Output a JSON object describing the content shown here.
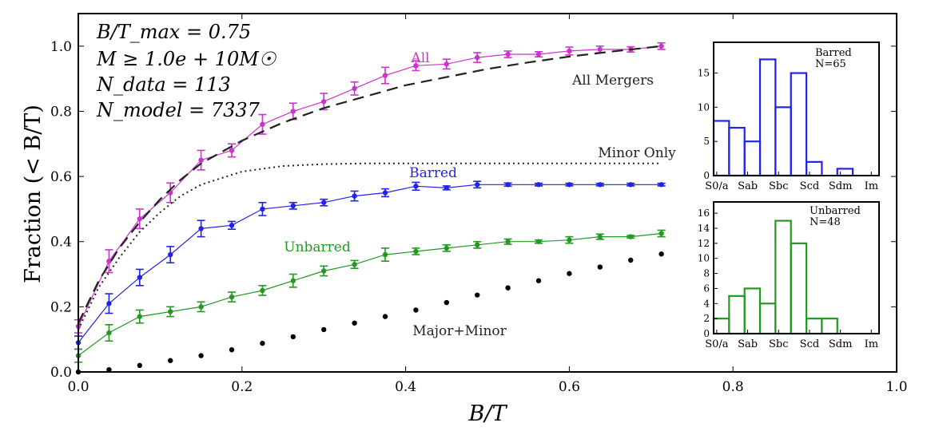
{
  "chart_data": [
    {
      "type": "line",
      "xlabel": "B/T",
      "ylabel": "Fraction (< B/T)",
      "xlim": [
        0.0,
        1.0
      ],
      "ylim": [
        0.0,
        1.1
      ],
      "xticks": [
        "0.0",
        "0.2",
        "0.4",
        "0.6",
        "0.8",
        "1.0"
      ],
      "yticks": [
        "0.0",
        "0.2",
        "0.4",
        "0.6",
        "0.8",
        "1.0"
      ],
      "legend_position": "top-left text block",
      "info_lines": [
        "B/T_max = 0.75",
        "M ≥ 1.0e + 10M☉",
        "N_data = 113",
        "N_model = 7337"
      ],
      "series": [
        {
          "name": "All",
          "color": "#cc33cc",
          "style": "line-points-errorbars",
          "x": [
            0.0,
            0.0375,
            0.075,
            0.1125,
            0.15,
            0.1875,
            0.225,
            0.2625,
            0.3,
            0.3375,
            0.375,
            0.4125,
            0.45,
            0.4875,
            0.525,
            0.5625,
            0.6,
            0.6375,
            0.675,
            0.7125
          ],
          "values": [
            0.14,
            0.34,
            0.47,
            0.55,
            0.65,
            0.68,
            0.76,
            0.8,
            0.83,
            0.87,
            0.91,
            0.94,
            0.945,
            0.965,
            0.975,
            0.975,
            0.985,
            0.99,
            0.99,
            1.0
          ],
          "errors": [
            0.02,
            0.035,
            0.03,
            0.03,
            0.03,
            0.02,
            0.03,
            0.025,
            0.025,
            0.02,
            0.025,
            0.015,
            0.015,
            0.015,
            0.01,
            0.008,
            0.012,
            0.01,
            0.008,
            0.01
          ]
        },
        {
          "name": "All Mergers",
          "color": "#222222",
          "style": "dashed",
          "x": [
            0.0,
            0.025,
            0.05,
            0.075,
            0.1,
            0.125,
            0.15,
            0.2,
            0.25,
            0.3,
            0.35,
            0.4,
            0.45,
            0.5,
            0.55,
            0.6,
            0.65,
            0.7125
          ],
          "values": [
            0.15,
            0.28,
            0.38,
            0.46,
            0.53,
            0.59,
            0.64,
            0.71,
            0.765,
            0.81,
            0.845,
            0.88,
            0.905,
            0.93,
            0.95,
            0.968,
            0.983,
            1.0
          ]
        },
        {
          "name": "Minor Only",
          "color": "#222222",
          "style": "dotted",
          "x": [
            0.0,
            0.025,
            0.05,
            0.075,
            0.1,
            0.125,
            0.15,
            0.2,
            0.25,
            0.3,
            0.35,
            0.4,
            0.5,
            0.6,
            0.7125
          ],
          "values": [
            0.13,
            0.26,
            0.35,
            0.43,
            0.49,
            0.54,
            0.575,
            0.615,
            0.632,
            0.638,
            0.64,
            0.64,
            0.64,
            0.64,
            0.64
          ]
        },
        {
          "name": "Barred",
          "color": "#2222ee",
          "style": "line-points-errorbars",
          "x": [
            0.0,
            0.0375,
            0.075,
            0.1125,
            0.15,
            0.1875,
            0.225,
            0.2625,
            0.3,
            0.3375,
            0.375,
            0.4125,
            0.45,
            0.4875,
            0.525,
            0.5625,
            0.6,
            0.6375,
            0.675,
            0.7125
          ],
          "values": [
            0.09,
            0.21,
            0.29,
            0.36,
            0.44,
            0.45,
            0.5,
            0.51,
            0.52,
            0.54,
            0.55,
            0.57,
            0.565,
            0.575,
            0.575,
            0.575,
            0.575,
            0.575,
            0.575,
            0.575
          ],
          "errors": [
            0.02,
            0.03,
            0.025,
            0.025,
            0.025,
            0.012,
            0.02,
            0.01,
            0.01,
            0.015,
            0.012,
            0.012,
            0.006,
            0.01,
            0.005,
            0.004,
            0.004,
            0.004,
            0.004,
            0.004
          ]
        },
        {
          "name": "Unbarred",
          "color": "#229922",
          "style": "line-points-errorbars",
          "x": [
            0.0,
            0.0375,
            0.075,
            0.1125,
            0.15,
            0.1875,
            0.225,
            0.2625,
            0.3,
            0.3375,
            0.375,
            0.4125,
            0.45,
            0.4875,
            0.525,
            0.5625,
            0.6,
            0.6375,
            0.675,
            0.7125
          ],
          "values": [
            0.05,
            0.12,
            0.17,
            0.185,
            0.2,
            0.23,
            0.25,
            0.28,
            0.31,
            0.33,
            0.36,
            0.37,
            0.38,
            0.39,
            0.4,
            0.4,
            0.405,
            0.415,
            0.415,
            0.425
          ],
          "errors": [
            0.02,
            0.025,
            0.02,
            0.015,
            0.015,
            0.015,
            0.015,
            0.02,
            0.015,
            0.012,
            0.02,
            0.01,
            0.01,
            0.01,
            0.008,
            0.005,
            0.01,
            0.008,
            0.004,
            0.01
          ]
        },
        {
          "name": "Major+Minor",
          "color": "#000000",
          "style": "points",
          "x": [
            0.0,
            0.0375,
            0.075,
            0.1125,
            0.15,
            0.1875,
            0.225,
            0.2625,
            0.3,
            0.3375,
            0.375,
            0.4125,
            0.45,
            0.4875,
            0.525,
            0.5625,
            0.6,
            0.6375,
            0.675,
            0.7125
          ],
          "values": [
            0.0,
            0.007,
            0.02,
            0.035,
            0.05,
            0.068,
            0.088,
            0.108,
            0.13,
            0.15,
            0.17,
            0.19,
            0.213,
            0.236,
            0.258,
            0.28,
            0.302,
            0.322,
            0.343,
            0.362
          ]
        }
      ]
    },
    {
      "type": "bar",
      "title": "Barred",
      "subtitle": "N=65",
      "color": "#2222ee",
      "style": "step-outline",
      "tick_labels": [
        "S0/a",
        "Sab",
        "Sbc",
        "Scd",
        "Sdm",
        "Im"
      ],
      "yticks": [
        "0",
        "5",
        "10",
        "15"
      ],
      "ylim": [
        0,
        19.5
      ],
      "values": [
        8,
        7,
        5,
        17,
        10,
        15,
        2,
        0,
        1,
        0
      ]
    },
    {
      "type": "bar",
      "title": "Unbarred",
      "subtitle": "N=48",
      "color": "#229922",
      "style": "step-outline",
      "tick_labels": [
        "S0/a",
        "Sab",
        "Sbc",
        "Scd",
        "Sdm",
        "Im"
      ],
      "yticks": [
        "0",
        "2",
        "4",
        "6",
        "8",
        "10",
        "12",
        "14",
        "16"
      ],
      "ylim": [
        0,
        17.5
      ],
      "values": [
        2,
        5,
        6,
        4,
        15,
        12,
        2,
        2,
        0,
        0
      ]
    }
  ]
}
